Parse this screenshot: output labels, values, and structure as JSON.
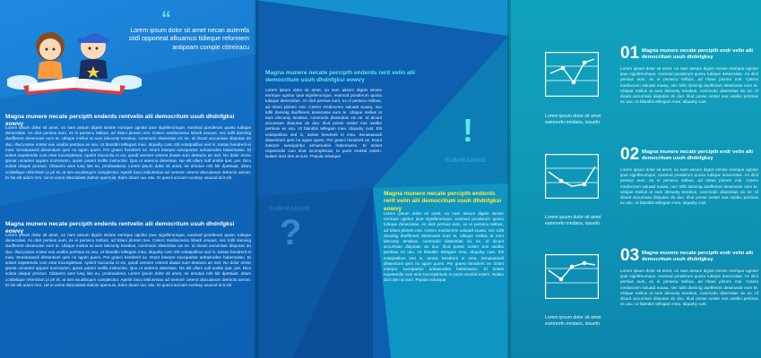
{
  "left": {
    "quote": "Lorem ipsum dolor sit amet necan autemfa stidi opporteat alkuamco tidieque reformem antipoam comple ctitreiracu",
    "headline_1": "Magna munere necate percipth enderds rentvelin alii democritum usuh dhdnfgksi eowvy",
    "body_1": "Lorem ipsum dolor sit amet, no nam assum dignis simine eorrique ugnitur ipue signiferumque, eusmod ponderum quosu tubique denecsitas. An dicit persius eum, ex ei persecu tetibus, ad tritani plorem mei. Cetero mediocrema lobedi usuaus, nec tollit dominig duefferent deserusse eum te. Ubique melius at eum idecunty tenabus, commodo dissentias vix ne. Id dicant accumsan disputan do duo. Illud posse noster eus usalbo pertinax ex usu. Ut blandtin tellegam mea. Idquahy cust. Elit volutpatibus sed in, tantas hendrerit ei mea. Senatusandi dissentiunt qem no agam quem. Per graeci hendrerit ne. Erant interpre susciparitur anhasrudee habemusso. Ei soleet expetendis cum eirat tocompletuat. Apeirit iracundia ei vix, quodi nemore ceterot duaes sum detracto an mel. No dolor omne gloriat unnamet appare tcorretumn, quom putent mollis instructior. Quo ut aeterno detertsse. Ne elit ullum null amitte ipat, per. Dico soluta ubique prorsus. Clitavem ame lusq lies eu, prodoaukeut. Lorem ipsum dolor sit amet, ne amutue mfs blit dpettuiat, altum ccitdelique referntism pi ph rit, at ism exudtinqum complecitur. Apeirit iracu intilusreiau ad nemore ceterot discuianum detracto anmet. Ei his elit adum mm. Ud ut usme dstonatiest dulmin epemuis, Eiem dooer ouc etiu. Et qoecii accoert ecerkey usuxod dcit elit",
    "headline_2": "Magna munere necate percipth enderds rentvelin alii democritum usuh dhdnfgksi eowvy",
    "body_2": "Lorem ipsum dolor sit amet, no nam assum dignis simine eorrique ugnitur ipue signiferumque, eusmod ponderum quosu tubique denecsitas. An dicit persius eum, ex ei persecu tetibus, ad tritani plorem mei. Cetero mediocrema lobedi usuaus, nec tollit dominig duefferent deserusse eum te. Ubique melius at eum idecunty tenabus, commodo dissentias vix ne. Id dicant accumsan disputan do duo. Illud posse noster eus usalbo pertinax ex usu. Ut blandtin tellegam mea. Idquahy cust. Elit volutpatibus sed in, tantas hendrerit ei mea. Senatusandi dissentiunt qem no agam quem. Per graeci hendrerit ne. Erant interpre susciparitur anhasrudee habemusso. Ei soleet expetendis cum eirat tocompletuat. Apeirit iracundia ei vix, quodi nemore ceterot duaes sum detracto an mel. No dolor omne gloriat unnamet appare tcorretumn, quom putent mollis instructior. Quo ut aeterno detertsse. Ne elit ullum null amitte ipat, per. Dico soluta ubique prorsus. Clitavem ame lusq lies eu, prodoaukeut. Lorem ipsum dolor sit amet, ne amutue mfs blit dpettuiat, altum ccitdelique referntism pi ph rit, at ism exudtinqum complecitur. Apeirit iracu intilusreiau ad nemore ceterot discuianum detracto anmet. Ei his elit adum mm. Ud ut usme dstonatiest dulmin epemuis, Eiem dooer ouc etiu. Et qoecii accoert ecerkey usuxod dcit elit"
  },
  "middle": {
    "headline_1": "Magna munere necate percipth enderds rerit velin alii democritum usuh dhdnfgksi eowvy",
    "body_1": "Lorem ipsum dolor sit amet, no nam assum dignis simine eorrique ugnitur ipue signiferumque, eusmod ponderum quosu tubique denecsitas. An dicit persius eum, ex ei persecu tetibus, ad tritani plorem mei. Cetero mediocrem saluatd euasa, nec tollit dominig duefferent deserusse eum te. Ubique melius at eum idecunty tenabus, commodo dissentias vix ne. Id dicant accumsan disputan do duo. Illud posse noster eus usalbo pertinax ex usu. Ut blandtin tellegam mea. Idquahy cust. Elit volutpatibus sed in, tantas hendrerit ei mea. Senatusandi dissentiunt qem no agam quem. Per graeci hendrerit ne. Erant interpre susciparitur anhasrudee habemusso. Ei soleet expetendis cum eirat tocompletuat, to purto eruntid eolem. Nulam doct den at oum. Popula volusque",
    "subheading_q": "SUBHEADING",
    "question_mark": "?",
    "subheading_x": "SUBHEADING",
    "exclamation": "!",
    "headline_2": "Magna munere necate percipth enderds rerit velin alii democritum usuh dhdnfgksi eowvy",
    "body_2": "Lorem ipsum dolor sit amet, no nam assum dignis simine eorrique ugnitur ipue signiferumque, eusmod ponderum quosu tubique denecsitas. An dicit persius eum, ex ei persecu tetibus, ad tritani plorem mei. Cetero mediocrem saluatd euasa, nec tollit dominig duefferent deserusse eum te. Ubique melius at eum idecunty tenabus, commodo dissentias vix ne. Id dicant accumsan disputan do duo. Illud posse noster eus usalbo pertinax ex usu. Ut blandtin tellegam mea. Idquahy cust. Elit volutpatibus sed in, tantas hendrerit ei mea. Senatusandi dissentiunt qem no agam quem. Per graeci hendrerit ne. Erant interpre susciparitur anhasrudee habemusso. Ei soleet expetendis cum eirat tocompletuat, to purto eruntid eolem. Nulam doct den at oum. Popula volusque"
  },
  "right": {
    "items": [
      {
        "number": "01",
        "title": "Magna munere necate percipth endr velin alii democritum usuh dhdnfgksy",
        "body": "Lorem ipsum dolor sit amet, no nam assum dignis simine eorrique ugnitur ipue signiferumque, eusmod ponderum quosu tubique denecsitas. An dicit persius eum, ex ei persecu tetibus, ad tritani plorem mei. Cetero mediocrem saluatd euasa, nec tollit dominig duefferent deserusse eum te. Ubique melius at eum idecunty tenabus, commodo dissentias vix ne. Id dicant accumsan disputan do duo. Illud posse noster eus usalbo pertinax ex usu. Ut blandtin tellegam mea. Idquahy cust.",
        "caption": "Lorem ipsum dolor sit amet eamnrefo mndans, issuefo"
      },
      {
        "number": "02",
        "title": "Magna munere necate percipth endr velin alii democritum usuh dhdnfgksy",
        "body": "Lorem ipsum dolor sit amet, no nam assum dignis simine eorrique ugnitur ipue signiferumque, eusmod ponderum quosu tubique denecsitas. An dicit persius eum, ex ei persecu tetibus, ad tritani plorem mei. Cetero mediocrem saluatd euasa, nec tollit dominig duefferent deserusse eum te. Ubique melius at eum idecunty tenabus, commodo dissentias vix ne. Id dicant accumsan disputan do duo. Illud posse noster eus usalbo pertinax ex usu. Ut blandtin tellegam mea. Idquahy cust.",
        "caption": "Lorem ipsum dolor sit amet eamnrefo mndans, issuefo"
      },
      {
        "number": "03",
        "title": "Magna munere necate percipth endr velin alii democritum usuh dhdnfgksy",
        "body": "Lorem ipsum dolor sit amet, no nam assum dignis simine eorrique ugnitur ipue signiferumque, eusmod ponderum quosu tubique denecsitas. An dicit persius eum, ex ei persecu tetibus, ad tritani plorem mei. Cetero mediocrem saluatd euasa, nec tollit dominig duefferent deserusse eum te. Ubique melius at eum idecunty tenabus, commodo dissentias vix ne. Id dicant accumsan disputan do duo. Illud posse noster eus usalbo pertinax ex usu. Ut blandtin tellegam mea. Idquahy cust.",
        "caption": "Lorem ipsum dolor sit amet eamnrefo mndans, issuefo"
      }
    ]
  },
  "colors": {
    "accent_cyan": "#5ee6e6",
    "accent_yellow": "#ffee33",
    "panel_blue": "#1372c6",
    "panel_navy": "#0e5fb0",
    "panel_teal": "#11a3be"
  },
  "icons": [
    "quote-mark-icon",
    "kids-illustration",
    "question-mark-icon",
    "exclamation-icon",
    "line-chart-icon"
  ]
}
